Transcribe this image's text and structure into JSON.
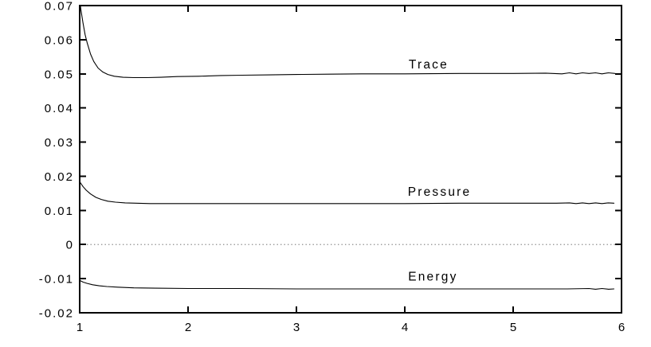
{
  "chart_data": {
    "type": "line",
    "title": "",
    "xlabel": "",
    "ylabel": "",
    "xlim": [
      1,
      6
    ],
    "ylim": [
      -0.02,
      0.07
    ],
    "grid": false,
    "legend_position": "inline labels above each curve",
    "xticks": {
      "values": [
        1,
        2,
        3,
        4,
        5,
        6
      ],
      "labels": [
        "1",
        "2",
        "3",
        "4",
        "5",
        "6"
      ]
    },
    "yticks": {
      "values": [
        0.07,
        0.06,
        0.05,
        0.04,
        0.03,
        0.02,
        0.01,
        0,
        -0.01,
        -0.02
      ],
      "labels": [
        "0.07",
        "0.06",
        "0.05",
        "0.04",
        "0.03",
        "0.02",
        "0.01",
        "0",
        "-0.01",
        "-0.02"
      ]
    },
    "zero_line": {
      "y": 0,
      "style": "dotted"
    },
    "series": [
      {
        "name": "Trace",
        "label_anchor": [
          4.22,
          0.0529
        ],
        "asymptote": 0.05,
        "points": [
          [
            1.0,
            0.072
          ],
          [
            1.01,
            0.069
          ],
          [
            1.03,
            0.065
          ],
          [
            1.05,
            0.0615
          ],
          [
            1.07,
            0.059
          ],
          [
            1.1,
            0.0558
          ],
          [
            1.13,
            0.0536
          ],
          [
            1.17,
            0.0517
          ],
          [
            1.21,
            0.0506
          ],
          [
            1.26,
            0.0498
          ],
          [
            1.32,
            0.0493
          ],
          [
            1.4,
            0.049
          ],
          [
            1.5,
            0.0489
          ],
          [
            1.62,
            0.0489
          ],
          [
            1.75,
            0.049
          ],
          [
            1.9,
            0.0492
          ],
          [
            2.1,
            0.0493
          ],
          [
            2.3,
            0.0495
          ],
          [
            2.5,
            0.0496
          ],
          [
            2.75,
            0.0497
          ],
          [
            3.0,
            0.0498
          ],
          [
            3.3,
            0.0499
          ],
          [
            3.6,
            0.05
          ],
          [
            4.0,
            0.05
          ],
          [
            4.5,
            0.0501
          ],
          [
            5.0,
            0.0501
          ],
          [
            5.3,
            0.0502
          ],
          [
            5.45,
            0.05
          ],
          [
            5.52,
            0.0503
          ],
          [
            5.58,
            0.05
          ],
          [
            5.64,
            0.0503
          ],
          [
            5.7,
            0.0501
          ],
          [
            5.76,
            0.0503
          ],
          [
            5.82,
            0.05
          ],
          [
            5.88,
            0.0503
          ],
          [
            5.94,
            0.0501
          ]
        ]
      },
      {
        "name": "Pressure",
        "label_anchor": [
          4.32,
          0.0156
        ],
        "asymptote": 0.012,
        "points": [
          [
            1.0,
            0.0184
          ],
          [
            1.03,
            0.017
          ],
          [
            1.06,
            0.0159
          ],
          [
            1.1,
            0.0148
          ],
          [
            1.15,
            0.0138
          ],
          [
            1.2,
            0.0132
          ],
          [
            1.26,
            0.0127
          ],
          [
            1.33,
            0.0124
          ],
          [
            1.42,
            0.0122
          ],
          [
            1.52,
            0.0121
          ],
          [
            1.65,
            0.012
          ],
          [
            1.8,
            0.012
          ],
          [
            2.0,
            0.012
          ],
          [
            2.3,
            0.012
          ],
          [
            2.6,
            0.012
          ],
          [
            3.0,
            0.012
          ],
          [
            3.5,
            0.012
          ],
          [
            4.0,
            0.012
          ],
          [
            4.5,
            0.0121
          ],
          [
            5.0,
            0.0121
          ],
          [
            5.4,
            0.0121
          ],
          [
            5.52,
            0.0122
          ],
          [
            5.58,
            0.012
          ],
          [
            5.64,
            0.0122
          ],
          [
            5.7,
            0.012
          ],
          [
            5.76,
            0.0122
          ],
          [
            5.82,
            0.012
          ],
          [
            5.88,
            0.0122
          ],
          [
            5.93,
            0.0121
          ]
        ]
      },
      {
        "name": "Energy",
        "label_anchor": [
          4.26,
          -0.0093
        ],
        "asymptote": -0.013,
        "points": [
          [
            1.0,
            -0.0105
          ],
          [
            1.03,
            -0.011
          ],
          [
            1.07,
            -0.0114
          ],
          [
            1.12,
            -0.0118
          ],
          [
            1.18,
            -0.0121
          ],
          [
            1.25,
            -0.0123
          ],
          [
            1.35,
            -0.0125
          ],
          [
            1.5,
            -0.0127
          ],
          [
            1.7,
            -0.0128
          ],
          [
            2.0,
            -0.0129
          ],
          [
            2.5,
            -0.0129
          ],
          [
            3.0,
            -0.013
          ],
          [
            3.6,
            -0.013
          ],
          [
            4.2,
            -0.013
          ],
          [
            4.8,
            -0.013
          ],
          [
            5.2,
            -0.013
          ],
          [
            5.5,
            -0.013
          ],
          [
            5.7,
            -0.0129
          ],
          [
            5.76,
            -0.0131
          ],
          [
            5.82,
            -0.0129
          ],
          [
            5.88,
            -0.0131
          ],
          [
            5.93,
            -0.013
          ]
        ]
      }
    ]
  },
  "colors": {
    "background": "#ffffff",
    "axis": "#000000",
    "curve": "#000000",
    "zero_line": "#8c8c8c",
    "text": "#000000"
  }
}
